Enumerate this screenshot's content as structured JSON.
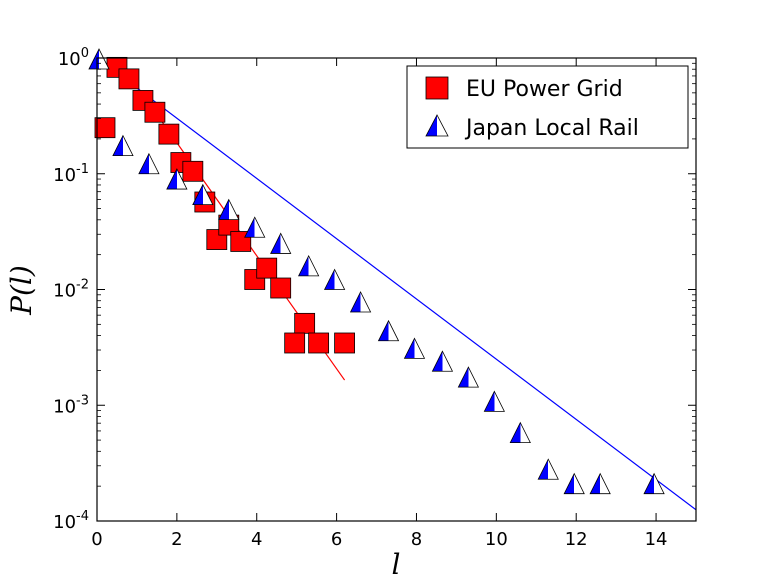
{
  "chart_data": {
    "type": "scatter",
    "xlabel": "l",
    "ylabel": "P(l)",
    "xlim": [
      0,
      15
    ],
    "ylim": [
      0.0001,
      1
    ],
    "yscale": "log",
    "x_ticks": [
      0,
      2,
      4,
      6,
      8,
      10,
      12,
      14
    ],
    "y_ticks": [
      {
        "value": 1,
        "base": "10",
        "exp": "0"
      },
      {
        "value": 0.1,
        "base": "10",
        "exp": "-1"
      },
      {
        "value": 0.01,
        "base": "10",
        "exp": "-2"
      },
      {
        "value": 0.001,
        "base": "10",
        "exp": "-3"
      },
      {
        "value": 0.0001,
        "base": "10",
        "exp": "-4"
      }
    ],
    "legend_position": "top-right",
    "grid": false,
    "series": [
      {
        "name": "EU Power Grid",
        "marker": "square",
        "color": "#ff0000",
        "points": [
          [
            0.2,
            0.25
          ],
          [
            0.5,
            0.83
          ],
          [
            0.8,
            0.66
          ],
          [
            1.15,
            0.43
          ],
          [
            1.45,
            0.34
          ],
          [
            1.8,
            0.22
          ],
          [
            2.1,
            0.125
          ],
          [
            2.4,
            0.105
          ],
          [
            2.7,
            0.057
          ],
          [
            3.0,
            0.027
          ],
          [
            3.3,
            0.036
          ],
          [
            3.6,
            0.026
          ],
          [
            3.95,
            0.0122
          ],
          [
            4.25,
            0.0153
          ],
          [
            4.6,
            0.0103
          ],
          [
            5.2,
            0.0051
          ],
          [
            4.95,
            0.00345
          ],
          [
            5.55,
            0.00345
          ],
          [
            6.2,
            0.00345
          ]
        ],
        "fit": [
          [
            0.5,
            1.0
          ],
          [
            6.2,
            0.00165
          ]
        ]
      },
      {
        "name": "Japan Local Rail",
        "marker": "triangle",
        "color": "#0000ff",
        "points": [
          [
            0.05,
            0.98
          ],
          [
            0.65,
            0.175
          ],
          [
            1.3,
            0.122
          ],
          [
            2.0,
            0.09
          ],
          [
            2.65,
            0.066
          ],
          [
            3.3,
            0.049
          ],
          [
            3.95,
            0.0345
          ],
          [
            4.6,
            0.025
          ],
          [
            5.3,
            0.016
          ],
          [
            5.95,
            0.0122
          ],
          [
            6.6,
            0.0078
          ],
          [
            7.3,
            0.0044
          ],
          [
            7.95,
            0.0031
          ],
          [
            8.65,
            0.0024
          ],
          [
            9.3,
            0.00175
          ],
          [
            9.95,
            0.00108
          ],
          [
            10.6,
            0.00058
          ],
          [
            11.3,
            0.00028
          ],
          [
            11.95,
            0.00021
          ],
          [
            12.6,
            0.00021
          ],
          [
            13.95,
            0.00021
          ]
        ],
        "fit": [
          [
            0.0,
            1.0
          ],
          [
            15.0,
            0.000125
          ]
        ]
      }
    ]
  }
}
